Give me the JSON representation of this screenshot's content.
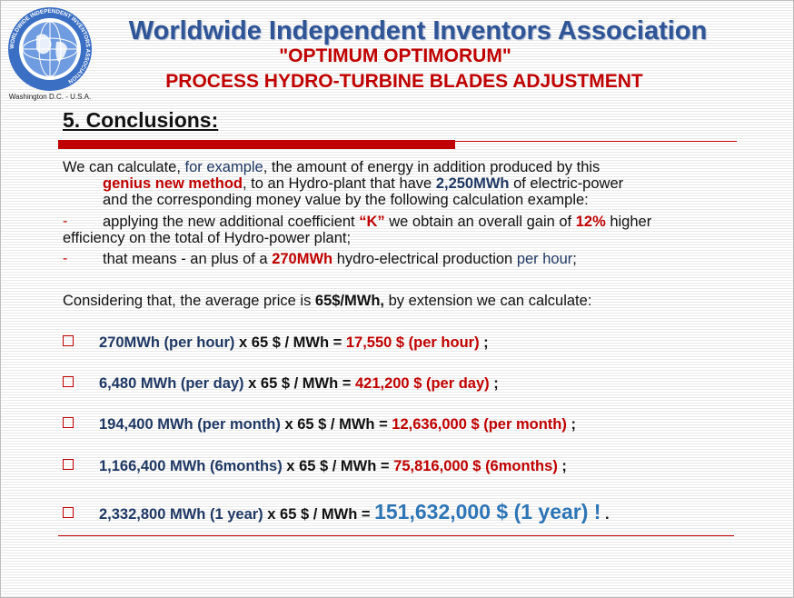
{
  "header": {
    "title": "Worldwide Independent Inventors Association",
    "subtitle": "\"OPTIMUM OPTIMORUM\"",
    "process_title": "PROCESS HYDRO-TURBINE BLADES ADJUSTMENT",
    "logo_caption": "Washington  D.C. - U.S.A.",
    "logo_ring_text": "WORLDWIDE INDEPENDENT INVENTORS ASSOCIATION"
  },
  "section": {
    "heading": "5. Conclusions:"
  },
  "intro": {
    "p1": "We can calculate, ",
    "p2": "for example",
    "p3": ", the amount of energy in addition produced by this",
    "p4": "genius new method",
    "p5": ", to an Hydro-plant that have ",
    "p6": "2,250MWh",
    "p7": " of electric-power",
    "p8": "and the corresponding money value by the following calculation example:"
  },
  "bullets": [
    {
      "marker": "-",
      "a": "applying the new additional coefficient ",
      "b": "“K”",
      "c": " we obtain an overall gain of ",
      "d": "12%",
      "e": " higher",
      "f": "efficiency on the total of Hydro-power plant;"
    },
    {
      "marker": "-",
      "a": "that means - an plus of a ",
      "b": "270MWh",
      "c": " hydro-electrical production ",
      "d": "per hour",
      "e": ";"
    }
  ],
  "considering": {
    "a": "Considering that, the average price is ",
    "b": "65$/MWh,",
    "c": " by extension we can calculate:"
  },
  "calculations": [
    {
      "qty": "270MWh (per hour)",
      "op": " x 65 $ / MWh = ",
      "result": "17,550 $ (per hour)",
      "end": " ;"
    },
    {
      "qty": "6,480 MWh (per day)",
      "op": " x 65 $ / MWh = ",
      "result": "421,200 $ (per day)",
      "end": " ;"
    },
    {
      "qty": "194,400 MWh (per month)",
      "op": " x 65 $ / MWh = ",
      "result": "12,636,000 $ (per month)",
      "end": " ;"
    },
    {
      "qty": "1,166,400 MWh (6months)",
      "op": " x 65 $ / MWh = ",
      "result": "75,816,000 $ (6months)",
      "end": " ;"
    },
    {
      "qty": "2,332,800 MWh (1 year)",
      "op": " x 65 $ / MWh = ",
      "result": "151,632,000 $ (1 year) !",
      "end": " ."
    }
  ],
  "colors": {
    "navy": "#1f3864",
    "red": "#c00000",
    "blue": "#2e75b6"
  }
}
